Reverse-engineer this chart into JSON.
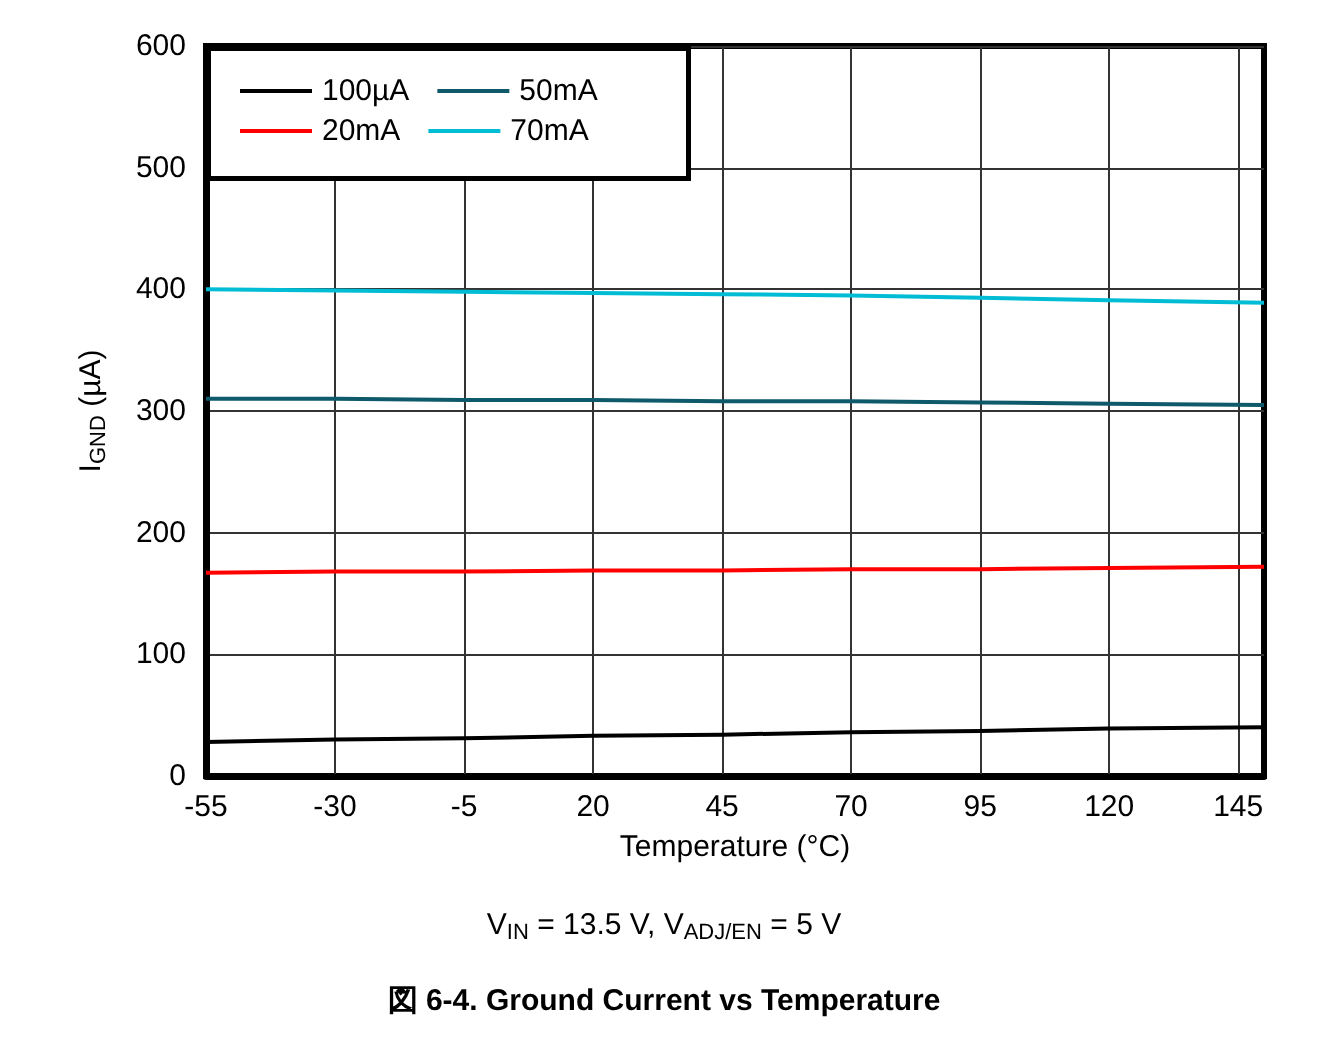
{
  "chart_data": {
    "type": "line",
    "title": "図 6-4. Ground Current vs Temperature",
    "xlabel": "Temperature (°C)",
    "ylabel": "I$_{GND}$ (µA)",
    "annotations": [
      "V$_{IN}$ = 13.5 V, V$_{ADJ/EN}$ = 5 V"
    ],
    "x": [
      -55,
      -30,
      -5,
      20,
      45,
      70,
      95,
      120,
      150
    ],
    "series": [
      {
        "name": "100µA",
        "color": "#000000",
        "values": [
          28,
          30,
          31,
          33,
          34,
          36,
          37,
          39,
          40
        ]
      },
      {
        "name": "20mA",
        "color": "#ff0000",
        "values": [
          167,
          168,
          168,
          169,
          169,
          170,
          170,
          171,
          172
        ]
      },
      {
        "name": "50mA",
        "color": "#0e5a6b",
        "values": [
          310,
          310,
          309,
          309,
          308,
          308,
          307,
          306,
          305
        ]
      },
      {
        "name": "70mA",
        "color": "#00bcd4",
        "values": [
          400,
          399,
          398,
          397,
          396,
          395,
          393,
          391,
          389
        ]
      }
    ],
    "xlim": [
      -55,
      150
    ],
    "xticks": [
      -55,
      -30,
      -5,
      20,
      45,
      70,
      95,
      120,
      145
    ],
    "ylim": [
      0,
      600
    ],
    "yticks": [
      0,
      100,
      200,
      300,
      400,
      500,
      600
    ],
    "grid": true,
    "legend": "top left",
    "marker": "none",
    "line_style": "solid"
  }
}
